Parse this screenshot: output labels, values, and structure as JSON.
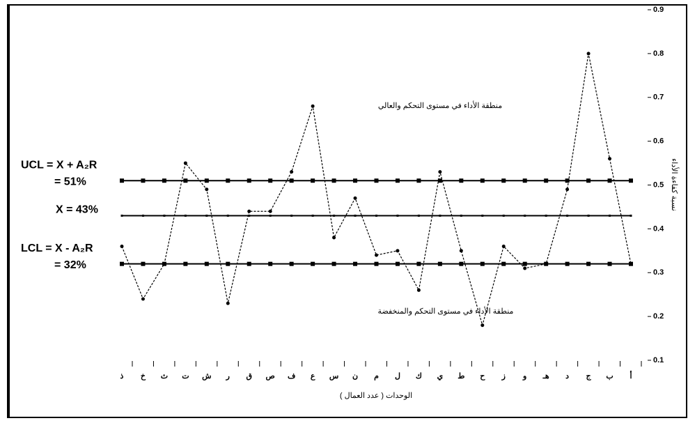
{
  "chart_data": {
    "type": "line",
    "categories": [
      "ذ",
      "خ",
      "ث",
      "ت",
      "ش",
      "ر",
      "ق",
      "ص",
      "ف",
      "ع",
      "س",
      "ن",
      "م",
      "ل",
      "ك",
      "ي",
      "ط",
      "ح",
      "ز",
      "و",
      "هـ",
      "د",
      "ج",
      "ب",
      "أ"
    ],
    "series": [
      {
        "color": "#000000",
        "values": [
          0.36,
          0.24,
          0.32,
          0.55,
          0.49,
          0.23,
          0.44,
          0.44,
          0.53,
          0.68,
          0.38,
          0.47,
          0.34,
          0.35,
          0.26,
          0.53,
          0.35,
          0.18,
          0.36,
          0.31,
          0.32,
          0.49,
          0.8,
          0.56,
          0.32
        ]
      }
    ],
    "control_lines": [
      {
        "labels": [
          "UCL = X + A₂R",
          "= 51%"
        ],
        "value": 0.51
      },
      {
        "labels": [
          "X = 43%"
        ],
        "value": 0.43
      },
      {
        "labels": [
          "LCL = X - A₂R",
          "= 32%"
        ],
        "value": 0.32
      }
    ],
    "annotations": [
      "منطقة الأداء في مستوى التحكم والعالي",
      "منطقة الأداء في مستوى التحكم والمنخفضة"
    ],
    "x_label": "الوحدات ( عدد العمال )",
    "y_label": "نسبة كفاءة الأداء",
    "ylim": [
      0.1,
      0.9
    ],
    "yticks": [
      0.1,
      0.2,
      0.3,
      0.4,
      0.5,
      0.6,
      0.7,
      0.8,
      0.9
    ]
  }
}
